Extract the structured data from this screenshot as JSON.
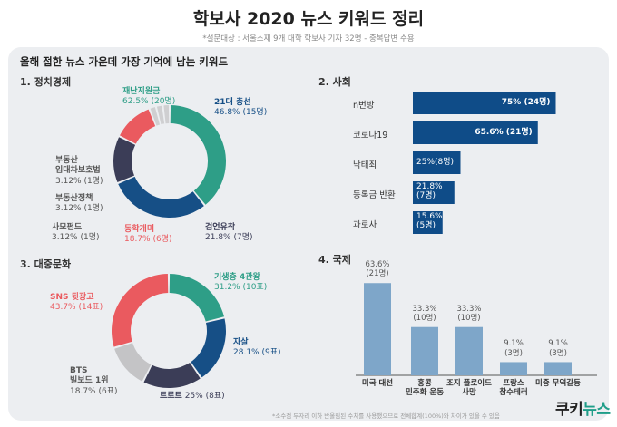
{
  "title": "학보사 2020 뉴스 키워드 정리",
  "subtitle": "*설문대상 : 서울소재 9개 대학 학보사 기자 32명 - 중복답변 수용",
  "question": "올해 접한 뉴스 가운데 가장 기억에 남는 키워드",
  "footnote": "*소수점 두자리 이하 반올림된 수치를 사용했으므로 전체합계(100%)와 차이가 있을 수 있음",
  "logo": {
    "part1": "쿠키",
    "part2": "뉴스"
  },
  "colors": {
    "green": "#2e9e87",
    "navy": "#164f86",
    "dark": "#3b3d57",
    "red": "#ea5a5f",
    "gray": "#c4c4c6",
    "lightgray": "#cfcfd1",
    "steel": "#7ea6c9",
    "bar": "#0f4c88"
  },
  "chart_data": [
    {
      "type": "pie",
      "title": "1. 정치경제",
      "categories": [
        "재난지원금",
        "21대 총선",
        "검언유착",
        "동학개미",
        "사모펀드",
        "부동산정책",
        "부동산 임대차보호법"
      ],
      "values": [
        62.5,
        46.8,
        21.8,
        18.7,
        3.12,
        3.12,
        3.12
      ],
      "labels": [
        "62.5% (20명)",
        "46.8% (15명)",
        "21.8% (7명)",
        "18.7% (6명)",
        "3.12% (1명)",
        "3.12% (1명)",
        "3.12% (1명)"
      ],
      "label_names": [
        "재난지원금",
        "21대 총선",
        "검언유착",
        "동학개미",
        "사모펀드",
        "부동산정책",
        "부동산"
      ],
      "label_names2": [
        "",
        "",
        "",
        "",
        "",
        "",
        "임대차보호법"
      ],
      "colors": [
        "#2e9e87",
        "#164f86",
        "#3b3d57",
        "#ea5a5f",
        "#cfcfd1",
        "#cfcfd1",
        "#cfcfd1"
      ]
    },
    {
      "type": "bar",
      "orientation": "horizontal",
      "title": "2. 사회",
      "categories": [
        "n번방",
        "코로나19",
        "낙태죄",
        "등록금 반환",
        "과로사"
      ],
      "values": [
        75,
        65.6,
        25,
        21.8,
        15.6
      ],
      "labels": [
        "75% (24명)",
        "65.6% (21명)",
        "25%(8명)",
        "21.8%|(7명)",
        "15.6%|(5명)"
      ],
      "xlim": [
        0,
        100
      ]
    },
    {
      "type": "pie",
      "title": "3. 대중문화",
      "categories": [
        "기생충 4관왕",
        "자살",
        "트로트",
        "BTS 빌보드 1위",
        "SNS 뒷광고"
      ],
      "values": [
        31.2,
        28.1,
        25,
        18.7,
        43.7
      ],
      "labels": [
        "31.2% (10표)",
        "28.1% (9표)",
        "25% (8표)",
        "18.7% (6표)",
        "43.7% (14표)"
      ],
      "label_names": [
        "기생충 4관왕",
        "자살",
        "트로트",
        "BTS",
        "SNS 뒷광고"
      ],
      "label_names2": [
        "",
        "",
        "",
        "빌보드 1위",
        ""
      ],
      "colors": [
        "#2e9e87",
        "#164f86",
        "#3b3d57",
        "#c4c4c6",
        "#ea5a5f"
      ]
    },
    {
      "type": "bar",
      "orientation": "vertical",
      "title": "4. 국제",
      "categories": [
        "미국 대선",
        "홍콩 민주화 운동",
        "조지 플로이드 사망",
        "프랑스 참수테러",
        "미중 무역갈등"
      ],
      "category_lines": [
        [
          "미국 대선"
        ],
        [
          "홍콩",
          "민주화 운동"
        ],
        [
          "조지 플로이드",
          "사망"
        ],
        [
          "프랑스",
          "참수테러"
        ],
        [
          "미중 무역갈등"
        ]
      ],
      "values": [
        63.6,
        33.3,
        33.3,
        9.1,
        9.1
      ],
      "labels": [
        [
          "63.6%",
          "(21명)"
        ],
        [
          "33.3%",
          "(10명)"
        ],
        [
          "33.3%",
          "(10명)"
        ],
        [
          "9.1%",
          "(3명)"
        ],
        [
          "9.1%",
          "(3명)"
        ]
      ],
      "ylim": [
        0,
        70
      ]
    }
  ]
}
